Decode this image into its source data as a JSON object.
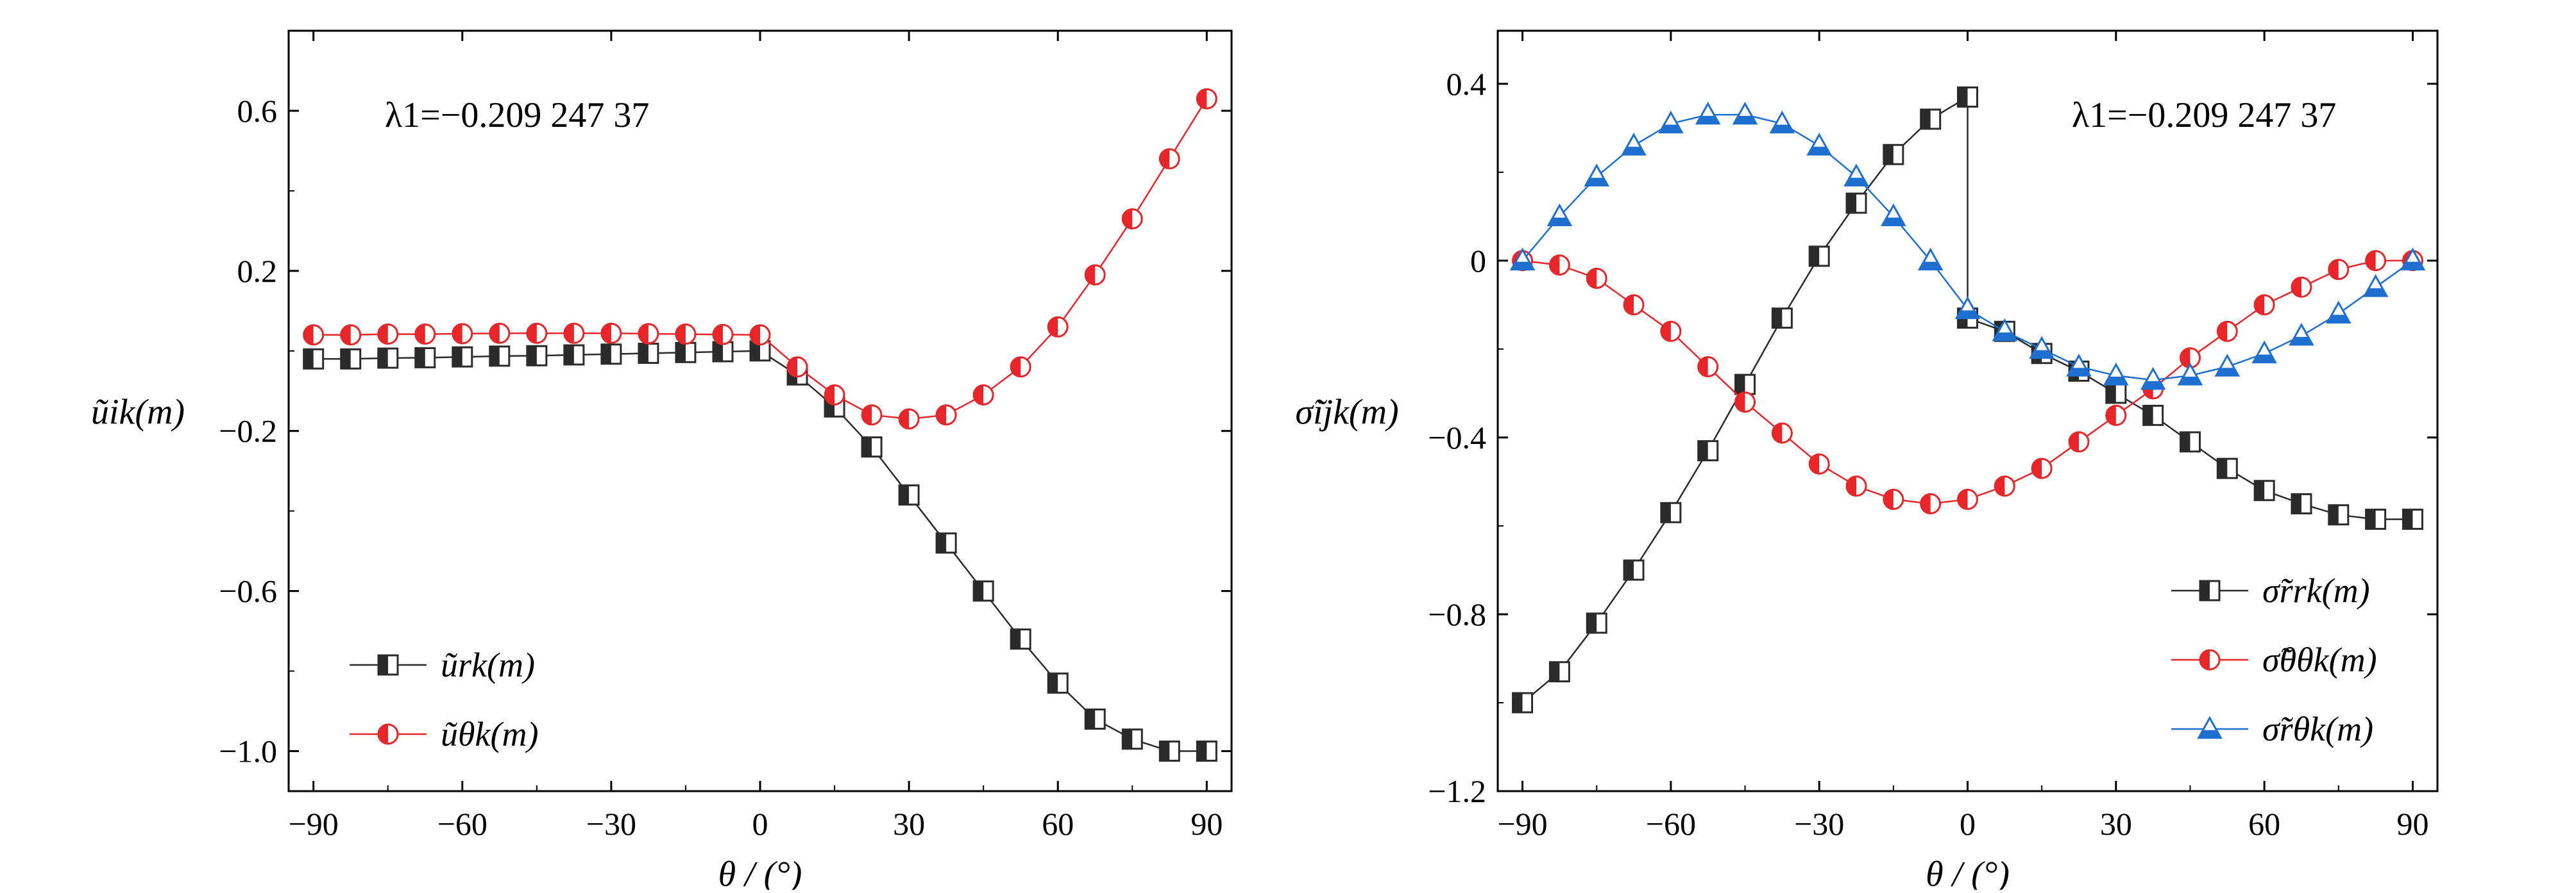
{
  "chart_data": [
    {
      "type": "line",
      "annotation": "λ1=−0.209 247 37",
      "xlabel": "θ / (°)",
      "ylabel": "ũik(m)",
      "xlim": [
        -95,
        95
      ],
      "ylim": [
        -1.1,
        0.8
      ],
      "xticks": [
        -90,
        -60,
        -30,
        0,
        30,
        60,
        90
      ],
      "yticks": [
        -1.0,
        -0.6,
        -0.2,
        0.2,
        0.6
      ],
      "xtick_labels": [
        "−90",
        "−60",
        "−30",
        "0",
        "30",
        "60",
        "90"
      ],
      "ytick_labels": [
        "−1.0",
        "−0.6",
        "−0.2",
        "0.2",
        "0.6"
      ],
      "legend_position": "bottom-left",
      "series": [
        {
          "name": "ũrk(m)",
          "color": "#2b2b2b",
          "marker": "square-half",
          "x": [
            -90,
            -82.5,
            -75,
            -67.5,
            -60,
            -52.5,
            -45,
            -37.5,
            -30,
            -22.5,
            -15,
            -7.5,
            0,
            7.5,
            15,
            22.5,
            30,
            37.5,
            45,
            52.5,
            60,
            67.5,
            75,
            82.5,
            90
          ],
          "values": [
            -0.02,
            -0.02,
            -0.018,
            -0.017,
            -0.015,
            -0.013,
            -0.012,
            -0.01,
            -0.008,
            -0.006,
            -0.004,
            -0.002,
            0.0,
            -0.06,
            -0.14,
            -0.24,
            -0.36,
            -0.48,
            -0.6,
            -0.72,
            -0.83,
            -0.92,
            -0.97,
            -1.0,
            -1.0
          ]
        },
        {
          "name": "ũθk(m)",
          "color": "#e8262a",
          "marker": "circle-half",
          "x": [
            -90,
            -82.5,
            -75,
            -67.5,
            -60,
            -52.5,
            -45,
            -37.5,
            -30,
            -22.5,
            -15,
            -7.5,
            0,
            7.5,
            15,
            22.5,
            30,
            37.5,
            45,
            52.5,
            60,
            67.5,
            75,
            82.5,
            90
          ],
          "values": [
            0.04,
            0.04,
            0.042,
            0.042,
            0.043,
            0.044,
            0.044,
            0.044,
            0.044,
            0.043,
            0.042,
            0.041,
            0.04,
            -0.04,
            -0.11,
            -0.16,
            -0.17,
            -0.16,
            -0.11,
            -0.04,
            0.06,
            0.19,
            0.33,
            0.48,
            0.63
          ]
        }
      ]
    },
    {
      "type": "line",
      "annotation": "λ1=−0.209 247 37",
      "xlabel": "θ / (°)",
      "ylabel": "σ̃ijk(m)",
      "xlim": [
        -95,
        95
      ],
      "ylim": [
        -1.2,
        0.52
      ],
      "xticks": [
        -90,
        -60,
        -30,
        0,
        30,
        60,
        90
      ],
      "yticks": [
        -1.2,
        -0.8,
        -0.4,
        0,
        0.4
      ],
      "xtick_labels": [
        "−90",
        "−60",
        "−30",
        "0",
        "30",
        "60",
        "90"
      ],
      "ytick_labels": [
        "−1.2",
        "−0.8",
        "−0.4",
        "0",
        "0.4"
      ],
      "legend_position": "bottom-right",
      "series": [
        {
          "name": "σ̃rrk(m)",
          "color": "#2b2b2b",
          "marker": "square-half",
          "x": [
            -90,
            -82.5,
            -75,
            -67.5,
            -60,
            -52.5,
            -45,
            -37.5,
            -30,
            -22.5,
            -15,
            -7.5,
            0,
            0,
            7.5,
            15,
            22.5,
            30,
            37.5,
            45,
            52.5,
            60,
            67.5,
            75,
            82.5,
            90
          ],
          "values": [
            -1.0,
            -0.93,
            -0.82,
            -0.7,
            -0.57,
            -0.43,
            -0.28,
            -0.13,
            0.01,
            0.13,
            0.24,
            0.32,
            0.37,
            -0.13,
            -0.16,
            -0.21,
            -0.25,
            -0.3,
            -0.35,
            -0.41,
            -0.47,
            -0.52,
            -0.55,
            -0.575,
            -0.585,
            -0.585
          ]
        },
        {
          "name": "σ̃θθk(m)",
          "color": "#e8262a",
          "marker": "circle-half",
          "x": [
            -90,
            -82.5,
            -75,
            -67.5,
            -60,
            -52.5,
            -45,
            -37.5,
            -30,
            -22.5,
            -15,
            -7.5,
            0,
            7.5,
            15,
            22.5,
            30,
            37.5,
            45,
            52.5,
            60,
            67.5,
            75,
            82.5,
            90
          ],
          "values": [
            0.0,
            -0.01,
            -0.04,
            -0.1,
            -0.16,
            -0.24,
            -0.32,
            -0.39,
            -0.46,
            -0.51,
            -0.54,
            -0.55,
            -0.54,
            -0.51,
            -0.47,
            -0.41,
            -0.35,
            -0.29,
            -0.22,
            -0.16,
            -0.1,
            -0.06,
            -0.02,
            0.0,
            0.0
          ]
        },
        {
          "name": "σ̃rθk(m)",
          "color": "#1f6fd0",
          "marker": "triangle-half",
          "x": [
            -90,
            -82.5,
            -75,
            -67.5,
            -60,
            -52.5,
            -45,
            -37.5,
            -30,
            -22.5,
            -15,
            -7.5,
            0,
            7.5,
            15,
            22.5,
            30,
            37.5,
            45,
            52.5,
            60,
            67.5,
            75,
            82.5,
            90
          ],
          "values": [
            0.0,
            0.1,
            0.19,
            0.26,
            0.31,
            0.33,
            0.33,
            0.31,
            0.26,
            0.19,
            0.1,
            0.0,
            -0.11,
            -0.16,
            -0.2,
            -0.24,
            -0.26,
            -0.27,
            -0.26,
            -0.24,
            -0.21,
            -0.17,
            -0.12,
            -0.06,
            0.0
          ]
        }
      ]
    }
  ]
}
